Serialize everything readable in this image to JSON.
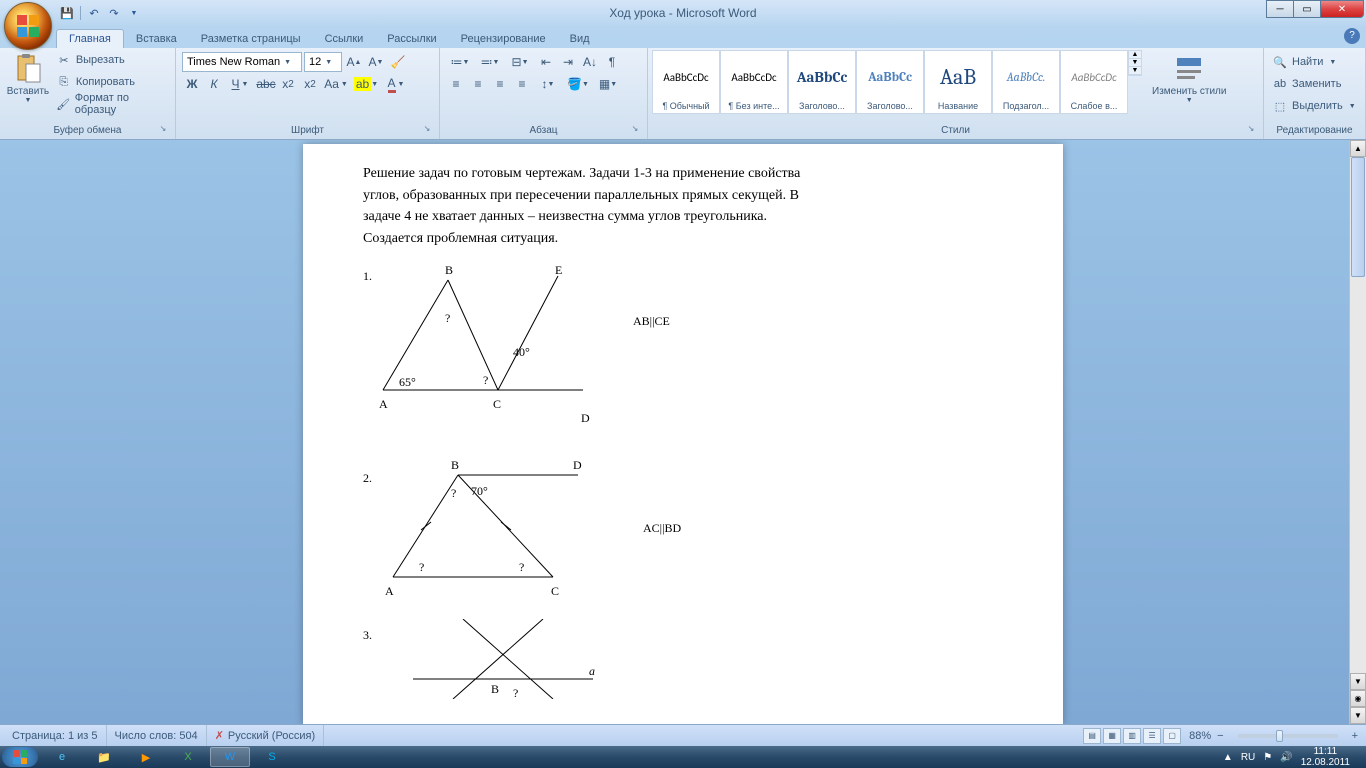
{
  "window": {
    "title": "Ход урока - Microsoft Word"
  },
  "qat": {
    "save": "💾",
    "undo": "↶",
    "redo": "↷"
  },
  "tabs": {
    "home": "Главная",
    "insert": "Вставка",
    "page_layout": "Разметка страницы",
    "references": "Ссылки",
    "mailings": "Рассылки",
    "review": "Рецензирование",
    "view": "Вид"
  },
  "clipboard": {
    "group": "Буфер обмена",
    "paste": "Вставить",
    "cut": "Вырезать",
    "copy": "Копировать",
    "format_painter": "Формат по образцу"
  },
  "font": {
    "group": "Шрифт",
    "family": "Times New Roman",
    "size": "12"
  },
  "paragraph": {
    "group": "Абзац"
  },
  "styles": {
    "group": "Стили",
    "change": "Изменить стили",
    "items": [
      {
        "preview": "AaBbCcDc",
        "name": "¶ Обычный",
        "color": "#000000",
        "weight": "normal",
        "size": "11px",
        "font": "Calibri"
      },
      {
        "preview": "AaBbCcDc",
        "name": "¶ Без инте...",
        "color": "#000000",
        "weight": "normal",
        "size": "11px",
        "font": "Calibri"
      },
      {
        "preview": "AaBbCc",
        "name": "Заголово...",
        "color": "#1f497d",
        "weight": "bold",
        "size": "15px",
        "font": "Cambria"
      },
      {
        "preview": "AaBbCc",
        "name": "Заголово...",
        "color": "#4f81bd",
        "weight": "bold",
        "size": "13px",
        "font": "Cambria"
      },
      {
        "preview": "AaB",
        "name": "Название",
        "color": "#1f497d",
        "weight": "normal",
        "size": "22px",
        "font": "Cambria"
      },
      {
        "preview": "AaBbCc.",
        "name": "Подзагол...",
        "color": "#4f81bd",
        "weight": "normal",
        "size": "12px",
        "font": "Cambria",
        "italic": true
      },
      {
        "preview": "AaBbCcDc",
        "name": "Слабое в...",
        "color": "#808080",
        "weight": "normal",
        "size": "11px",
        "font": "Calibri",
        "italic": true
      }
    ]
  },
  "editing": {
    "group": "Редактирование",
    "find": "Найти",
    "replace": "Заменить",
    "select": "Выделить"
  },
  "document": {
    "para1": "Решение задач по готовым чертежам. Задачи 1-3 на применение свойства",
    "para2": "углов, образованных при пересечении параллельных прямых секущей. В",
    "para3": "задаче 4 не хватает данных – неизвестна сумма углов треугольника.",
    "para4": "Создается проблемная ситуация.",
    "problem1": {
      "num": "1.",
      "labels": {
        "A": "A",
        "B": "B",
        "C": "C",
        "D": "D",
        "E": "E"
      },
      "angle65": "65°",
      "angle40": "40°",
      "q": "?",
      "condition": "AB||CE"
    },
    "problem2": {
      "num": "2.",
      "labels": {
        "A": "A",
        "B": "B",
        "C": "C",
        "D": "D"
      },
      "angle70": "70°",
      "q": "?",
      "condition": "AC||BD"
    },
    "problem3": {
      "num": "3.",
      "labels": {
        "B": "B",
        "a": "a"
      },
      "q": "?"
    }
  },
  "status": {
    "page": "Страница: 1 из 5",
    "words": "Число слов: 504",
    "lang": "Русский (Россия)",
    "zoom": "88%"
  },
  "tray": {
    "lang": "RU",
    "time": "11:11",
    "date": "12.08.2011"
  }
}
